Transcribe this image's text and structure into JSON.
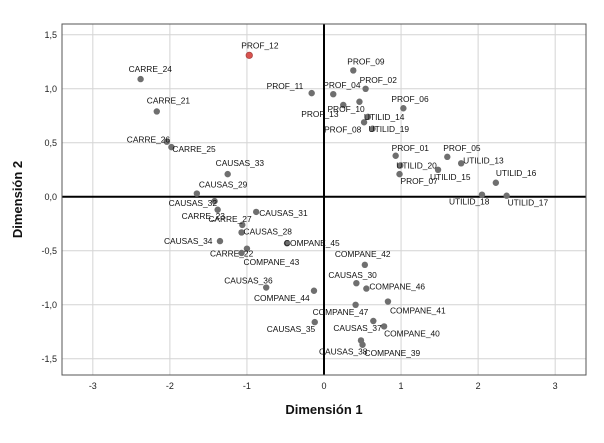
{
  "chart_data": {
    "type": "scatter",
    "xlabel": "Dimensión 1",
    "ylabel": "Dimensión 2",
    "xlim": [
      -3.4,
      3.4
    ],
    "ylim": [
      -1.65,
      1.6
    ],
    "xticks": [
      -3,
      -2,
      -1,
      0,
      1,
      2,
      3
    ],
    "xtick_labels": [
      "-3",
      "-2",
      "-1",
      "0",
      "1",
      "2",
      "3"
    ],
    "yticks": [
      -1.5,
      -1.0,
      -0.5,
      0.0,
      0.5,
      1.0,
      1.5
    ],
    "ytick_labels": [
      "-1,5",
      "-1,0",
      "-0,5",
      "0,0",
      "0,5",
      "1,0",
      "1,5"
    ],
    "grid": true,
    "colors": {
      "point": "#6f6f6f",
      "highlight": "#d9534f",
      "zero_line": "#000000",
      "grid": "#d4d4d4"
    },
    "points": [
      {
        "label": "PROF_12",
        "x": -0.97,
        "y": 1.31,
        "highlight": true
      },
      {
        "label": "CARRE_24",
        "x": -2.38,
        "y": 1.09
      },
      {
        "label": "CARRE_21",
        "x": -2.17,
        "y": 0.79
      },
      {
        "label": "CARRE_26",
        "x": -2.04,
        "y": 0.51
      },
      {
        "label": "CARRE_25",
        "x": -1.98,
        "y": 0.46
      },
      {
        "label": "CAUSAS_33",
        "x": -1.25,
        "y": 0.21
      },
      {
        "label": "CAUSAS_29",
        "x": -1.65,
        "y": 0.03
      },
      {
        "label": "CAUSAS_32",
        "x": -1.42,
        "y": -0.04
      },
      {
        "label": "CARRE_23",
        "x": -1.38,
        "y": -0.12
      },
      {
        "label": "CAUSAS_31",
        "x": -0.88,
        "y": -0.14
      },
      {
        "label": "CARRE_27",
        "x": -1.06,
        "y": -0.26
      },
      {
        "label": "CAUSAS_28",
        "x": -1.07,
        "y": -0.33
      },
      {
        "label": "CAUSAS_34",
        "x": -1.35,
        "y": -0.41
      },
      {
        "label": "CARRE_22",
        "x": -1.0,
        "y": -0.48
      },
      {
        "label": "COMPANE_45",
        "x": -0.48,
        "y": -0.43
      },
      {
        "label": "COMPANE_43",
        "x": -1.07,
        "y": -0.52
      },
      {
        "label": "PROF_11",
        "x": -0.16,
        "y": 0.96
      },
      {
        "label": "PROF_04",
        "x": 0.12,
        "y": 0.95
      },
      {
        "label": "PROF_13",
        "x": 0.25,
        "y": 0.85
      },
      {
        "label": "PROF_09",
        "x": 0.38,
        "y": 1.17
      },
      {
        "label": "PROF_02",
        "x": 0.54,
        "y": 1.0
      },
      {
        "label": "PROF_10",
        "x": 0.46,
        "y": 0.88
      },
      {
        "label": "PROF_06",
        "x": 1.03,
        "y": 0.82
      },
      {
        "label": "UTILID_14",
        "x": 0.57,
        "y": 0.74
      },
      {
        "label": "UTILID_19",
        "x": 0.63,
        "y": 0.63
      },
      {
        "label": "PROF_08",
        "x": 0.52,
        "y": 0.69
      },
      {
        "label": "PROF_01",
        "x": 0.93,
        "y": 0.38
      },
      {
        "label": "PROF_05",
        "x": 1.6,
        "y": 0.37
      },
      {
        "label": "UTILID_13",
        "x": 1.78,
        "y": 0.31
      },
      {
        "label": "UTILID_20",
        "x": 0.99,
        "y": 0.29
      },
      {
        "label": "UTILID_15",
        "x": 1.48,
        "y": 0.25
      },
      {
        "label": "PROF_07",
        "x": 0.98,
        "y": 0.21
      },
      {
        "label": "UTILID_16",
        "x": 2.23,
        "y": 0.13
      },
      {
        "label": "UTILID_18",
        "x": 2.05,
        "y": 0.02
      },
      {
        "label": "UTILID_17",
        "x": 2.37,
        "y": 0.01
      },
      {
        "label": "COMPANE_42",
        "x": 0.53,
        "y": -0.63
      },
      {
        "label": "COMPANE_46",
        "x": 0.55,
        "y": -0.85
      },
      {
        "label": "CAUSAS_30",
        "x": 0.42,
        "y": -0.8
      },
      {
        "label": "CAUSAS_36",
        "x": -0.75,
        "y": -0.84
      },
      {
        "label": "COMPANE_44",
        "x": -0.13,
        "y": -0.87
      },
      {
        "label": "COMPANE_47",
        "x": 0.41,
        "y": -1.0
      },
      {
        "label": "COMPANE_41",
        "x": 0.83,
        "y": -0.97
      },
      {
        "label": "CAUSAS_37",
        "x": 0.64,
        "y": -1.15
      },
      {
        "label": "CAUSAS_35",
        "x": -0.12,
        "y": -1.16
      },
      {
        "label": "COMPANE_40",
        "x": 0.78,
        "y": -1.2
      },
      {
        "label": "CAUSAS_38",
        "x": 0.48,
        "y": -1.33
      },
      {
        "label": "COMPANE_39",
        "x": 0.5,
        "y": -1.37
      }
    ]
  }
}
